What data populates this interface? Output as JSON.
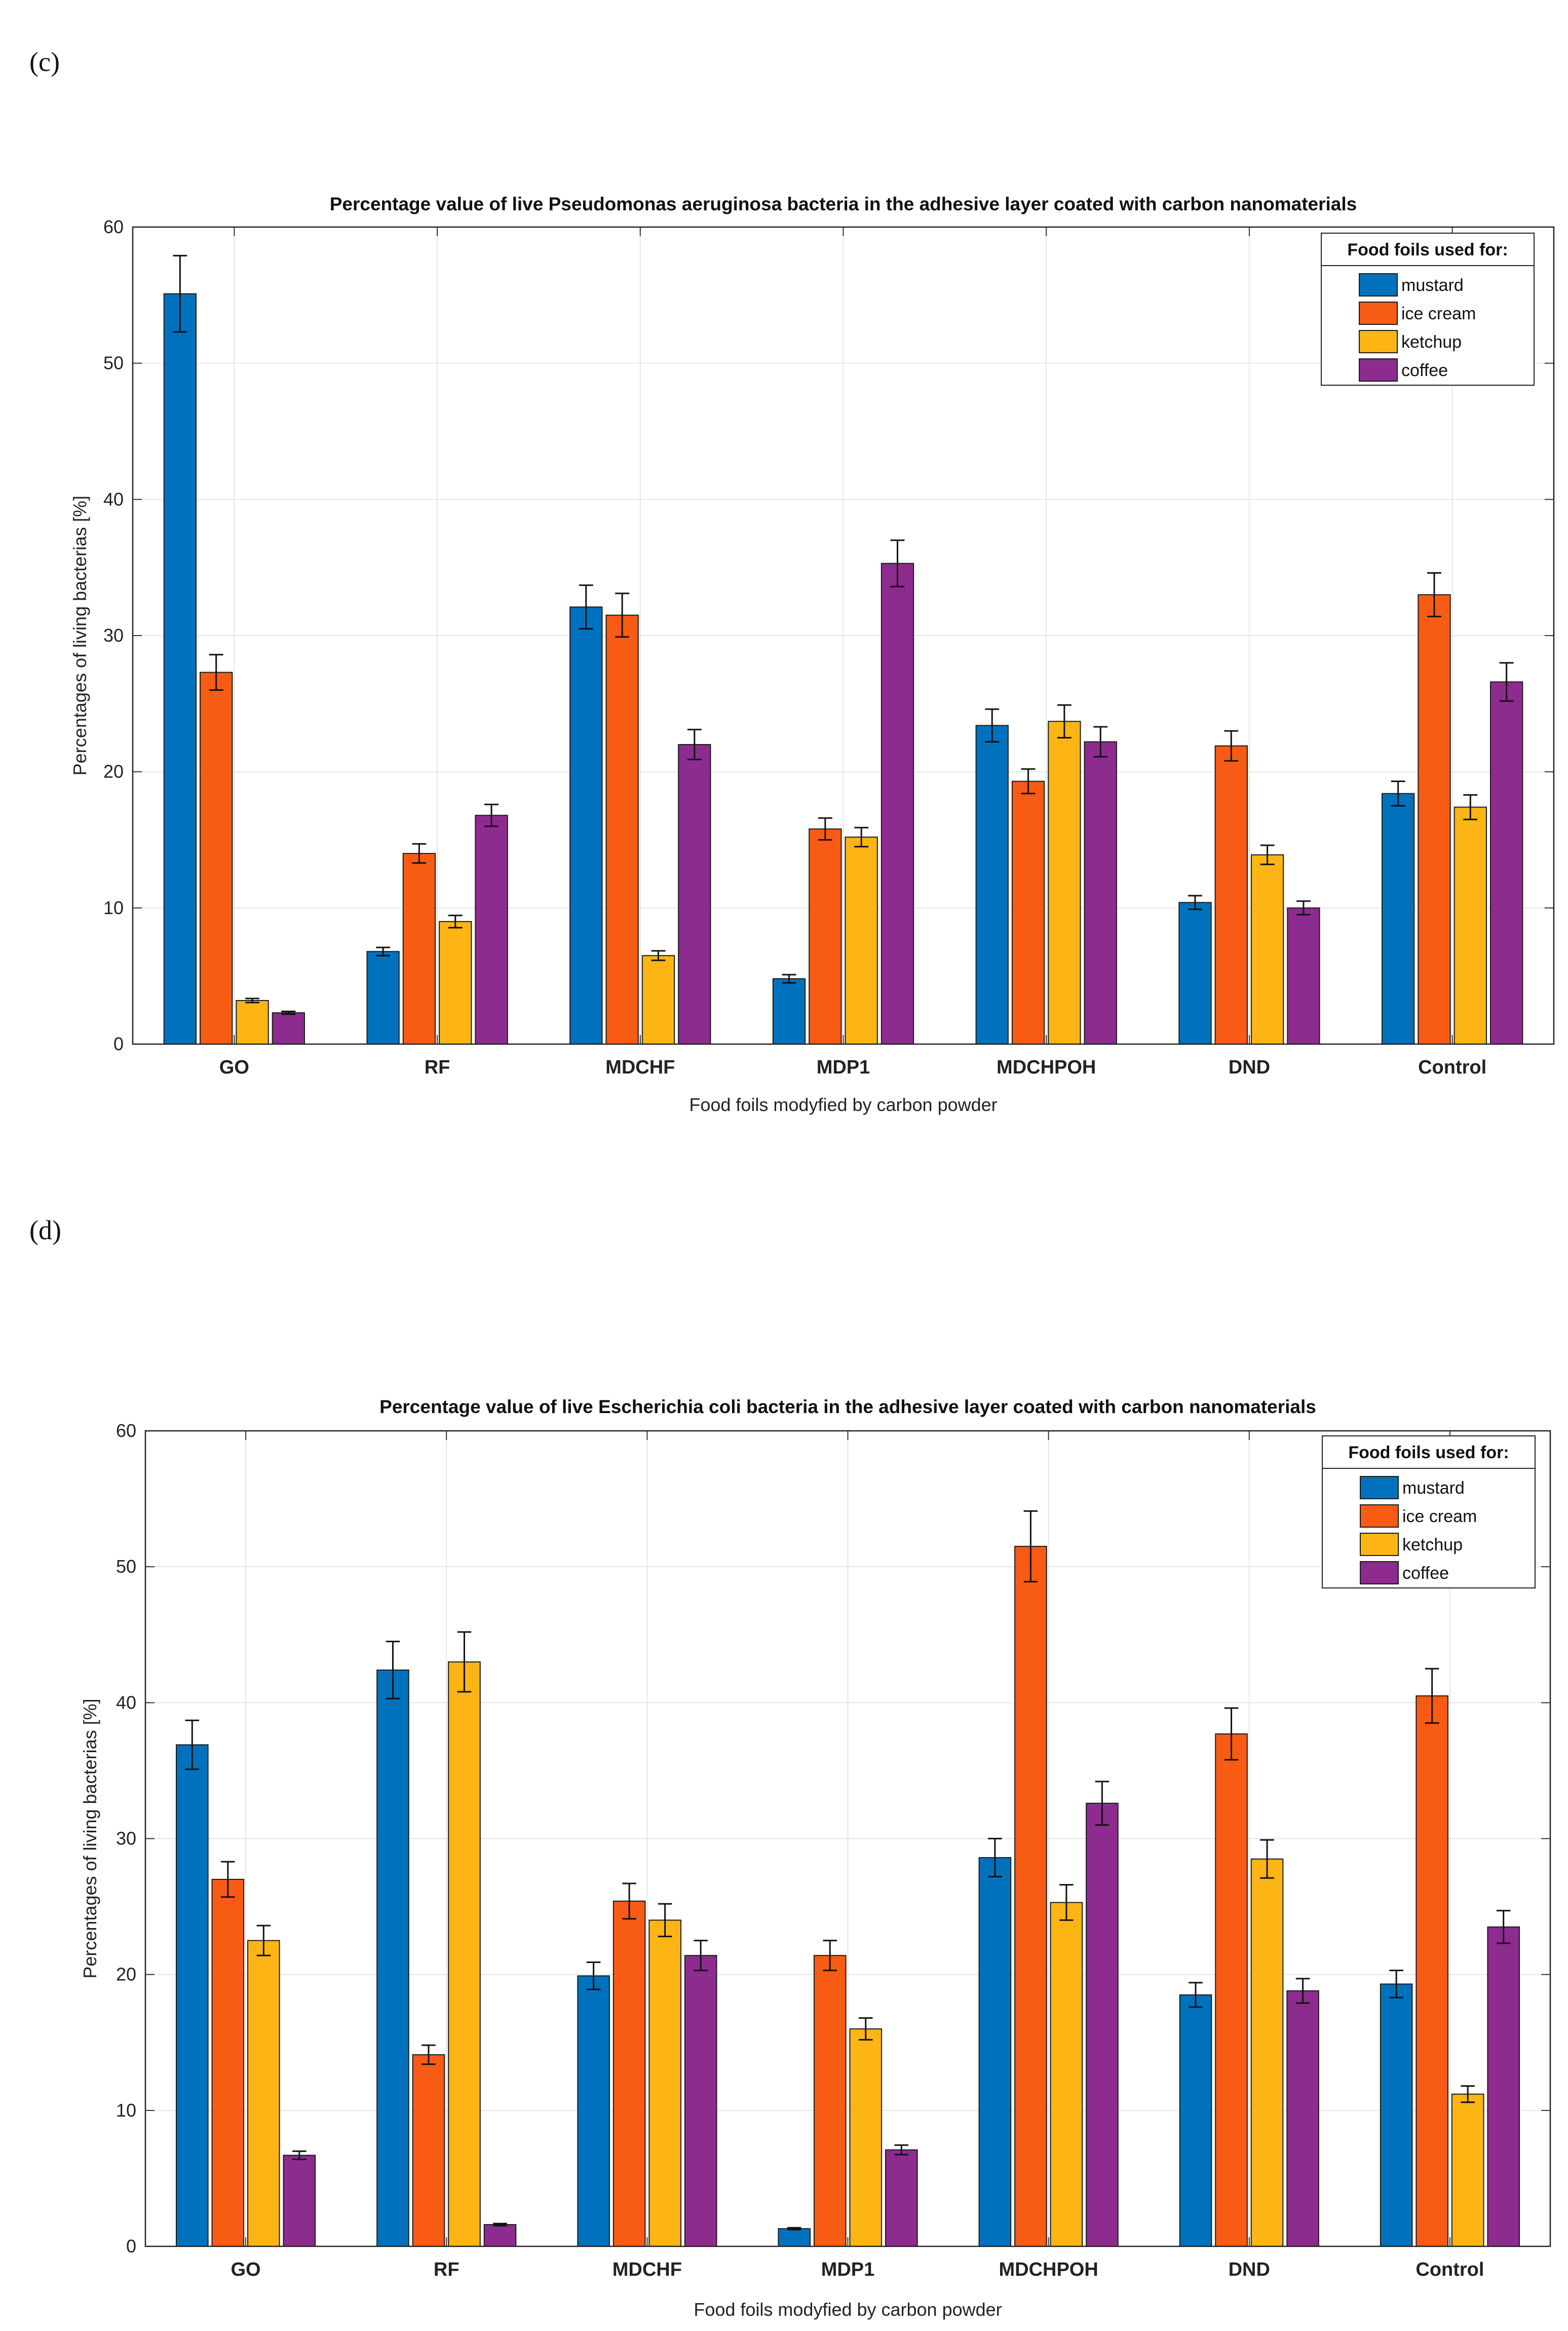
{
  "chart_data": [
    {
      "panel_label": "(c)",
      "type": "bar",
      "title": "Percentage value of live Pseudomonas aeruginosa bacteria in the adhesive layer coated with carbon nanomaterials",
      "xlabel": "Food foils modyfied by carbon powder",
      "ylabel": "Percentages of living bacterias [%]",
      "ylim": [
        0,
        60
      ],
      "yticks": [
        "0",
        "10",
        "20",
        "30",
        "40",
        "50",
        "60"
      ],
      "grid": true,
      "legend_title": "Food foils used for:",
      "legend_position": "top-right",
      "categories": [
        "GO",
        "RF",
        "MDCHF",
        "MDP1",
        "MDCHPOH",
        "DND",
        "Control"
      ],
      "series": [
        {
          "name": "mustard",
          "values": [
            55.1,
            6.8,
            32.1,
            4.8,
            23.4,
            10.4,
            18.4
          ],
          "errors": [
            2.8,
            0.3,
            1.6,
            0.3,
            1.2,
            0.5,
            0.9
          ]
        },
        {
          "name": "ice cream",
          "values": [
            27.3,
            14.0,
            31.5,
            15.8,
            19.3,
            21.9,
            33.0
          ],
          "errors": [
            1.3,
            0.7,
            1.6,
            0.8,
            0.9,
            1.1,
            1.6
          ]
        },
        {
          "name": "ketchup",
          "values": [
            3.2,
            9.0,
            6.5,
            15.2,
            23.7,
            13.9,
            17.4
          ],
          "errors": [
            0.15,
            0.45,
            0.35,
            0.7,
            1.2,
            0.7,
            0.9
          ]
        },
        {
          "name": "coffee",
          "values": [
            2.3,
            16.8,
            22.0,
            35.3,
            22.2,
            10.0,
            26.6
          ],
          "errors": [
            0.1,
            0.8,
            1.1,
            1.7,
            1.1,
            0.5,
            1.4
          ]
        }
      ]
    },
    {
      "panel_label": "(d)",
      "type": "bar",
      "title": "Percentage value of live Escherichia coli bacteria in the adhesive layer coated with carbon nanomaterials",
      "xlabel": "Food foils modyfied by carbon powder",
      "ylabel": "Percentages of living bacterias [%]",
      "ylim": [
        0,
        60
      ],
      "yticks": [
        "0",
        "10",
        "20",
        "30",
        "40",
        "50",
        "60"
      ],
      "grid": true,
      "legend_title": "Food foils used for:",
      "legend_position": "top-right",
      "categories": [
        "GO",
        "RF",
        "MDCHF",
        "MDP1",
        "MDCHPOH",
        "DND",
        "Control"
      ],
      "series": [
        {
          "name": "mustard",
          "values": [
            36.9,
            42.4,
            19.9,
            1.3,
            28.6,
            18.5,
            19.3
          ],
          "errors": [
            1.8,
            2.1,
            1.0,
            0.07,
            1.4,
            0.9,
            1.0
          ]
        },
        {
          "name": "ice cream",
          "values": [
            27.0,
            14.1,
            25.4,
            21.4,
            51.5,
            37.7,
            40.5
          ],
          "errors": [
            1.3,
            0.7,
            1.3,
            1.1,
            2.6,
            1.9,
            2.0
          ]
        },
        {
          "name": "ketchup",
          "values": [
            22.5,
            43.0,
            24.0,
            16.0,
            25.3,
            28.5,
            11.2
          ],
          "errors": [
            1.1,
            2.2,
            1.2,
            0.8,
            1.3,
            1.4,
            0.6
          ]
        },
        {
          "name": "coffee",
          "values": [
            6.7,
            1.6,
            21.4,
            7.1,
            32.6,
            18.8,
            23.5
          ],
          "errors": [
            0.3,
            0.08,
            1.1,
            0.35,
            1.6,
            0.9,
            1.2
          ]
        }
      ]
    }
  ],
  "colors": {
    "mustard": "#0072BD",
    "ice cream": "#F85B14",
    "ketchup": "#FDB515",
    "coffee": "#8E2B8E"
  }
}
